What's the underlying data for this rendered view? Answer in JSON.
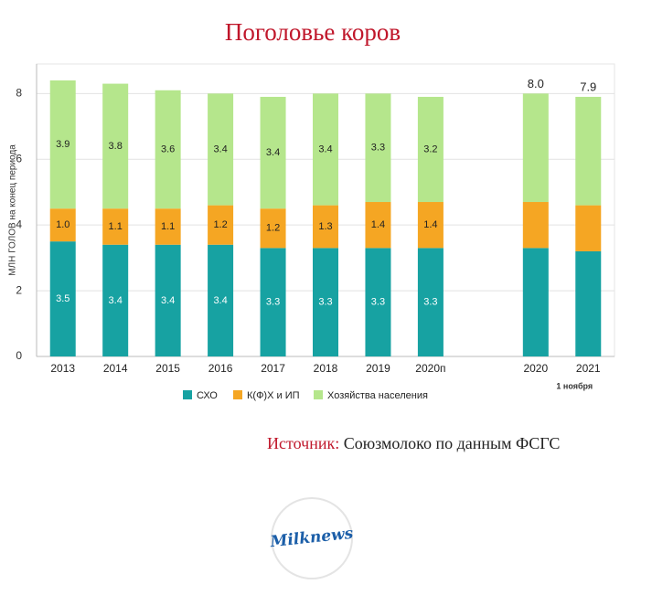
{
  "chart_data": {
    "type": "stacked_bar",
    "title": "Поголовье коров",
    "y_label": "МЛН ГОЛОВ на конец периода",
    "categories": [
      "2013",
      "2014",
      "2015",
      "2016",
      "2017",
      "2018",
      "2019",
      "2020п",
      null,
      "2020",
      "2021"
    ],
    "annotation": "1 ноября",
    "series": [
      {
        "name": "СХО",
        "color": "#17a2a2",
        "values": [
          3.5,
          3.4,
          3.4,
          3.4,
          3.3,
          3.3,
          3.3,
          3.3,
          null,
          3.3,
          3.2
        ],
        "value_labels": [
          "3.5",
          "3.4",
          "3.4",
          "3.4",
          "3.3",
          "3.3",
          "3.3",
          "3.3",
          null,
          null,
          null
        ]
      },
      {
        "name": "К(Ф)Х и ИП",
        "color": "#f5a623",
        "values": [
          1.0,
          1.1,
          1.1,
          1.2,
          1.2,
          1.3,
          1.4,
          1.4,
          null,
          1.4,
          1.4
        ],
        "value_labels": [
          "1.0",
          "1.1",
          "1.1",
          "1.2",
          "1.2",
          "1.3",
          "1.4",
          "1.4",
          null,
          null,
          null
        ]
      },
      {
        "name": "Хозяйства населения",
        "color": "#b5e68c",
        "values": [
          3.9,
          3.8,
          3.6,
          3.4,
          3.4,
          3.4,
          3.3,
          3.2,
          null,
          3.3,
          3.3
        ],
        "value_labels": [
          "3.9",
          "3.8",
          "3.6",
          "3.4",
          "3.4",
          "3.4",
          "3.3",
          "3.2",
          null,
          null,
          null
        ]
      }
    ],
    "total_labels": [
      null,
      null,
      null,
      null,
      null,
      null,
      null,
      null,
      null,
      "8.0",
      "7.9"
    ],
    "ylim": [
      0,
      8.9
    ],
    "yticks": [
      0,
      2,
      4,
      6,
      8
    ],
    "grid": true
  },
  "source": {
    "label": "Источник:",
    "text": "Союзмолоко по данным ФСГС"
  },
  "logo": "Milknews"
}
